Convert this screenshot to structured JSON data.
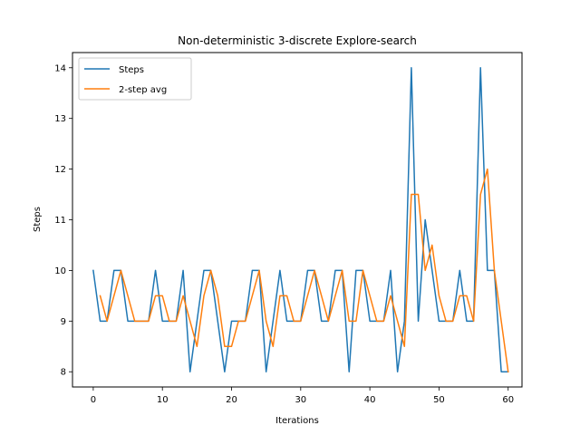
{
  "chart_data": {
    "type": "line",
    "title": "Non-deterministic 3-discrete Explore-search",
    "xlabel": "Iterations",
    "ylabel": "Steps",
    "xlim": [
      -3,
      62
    ],
    "ylim": [
      7.7,
      14.3
    ],
    "x_ticks": [
      0,
      10,
      20,
      30,
      40,
      50,
      60
    ],
    "y_ticks": [
      8,
      9,
      10,
      11,
      12,
      13,
      14
    ],
    "grid": false,
    "legend_position": "upper left",
    "series": [
      {
        "name": "Steps",
        "color": "#1f77b4",
        "x_start": 0,
        "values": [
          10,
          9,
          9,
          10,
          10,
          9,
          9,
          9,
          9,
          10,
          9,
          9,
          9,
          10,
          8,
          9,
          10,
          10,
          9,
          8,
          9,
          9,
          9,
          10,
          10,
          8,
          9,
          10,
          9,
          9,
          9,
          10,
          10,
          9,
          9,
          10,
          10,
          8,
          10,
          10,
          9,
          9,
          9,
          10,
          8,
          9,
          14,
          9,
          11,
          10,
          9,
          9,
          9,
          10,
          9,
          9,
          14,
          10,
          10,
          8,
          8
        ]
      },
      {
        "name": "2-step avg",
        "color": "#ff7f0e",
        "x_start": 1,
        "values": [
          9.5,
          9,
          9.5,
          10,
          9.5,
          9,
          9,
          9,
          9.5,
          9.5,
          9,
          9,
          9.5,
          9,
          8.5,
          9.5,
          10,
          9.5,
          8.5,
          8.5,
          9,
          9,
          9.5,
          10,
          9,
          8.5,
          9.5,
          9.5,
          9,
          9,
          9.5,
          10,
          9.5,
          9,
          9.5,
          10,
          9,
          9,
          10,
          9.5,
          9,
          9,
          9.5,
          9,
          8.5,
          11.5,
          11.5,
          10,
          10.5,
          9.5,
          9,
          9,
          9.5,
          9.5,
          9,
          11.5,
          12,
          10,
          9,
          8
        ]
      }
    ]
  }
}
